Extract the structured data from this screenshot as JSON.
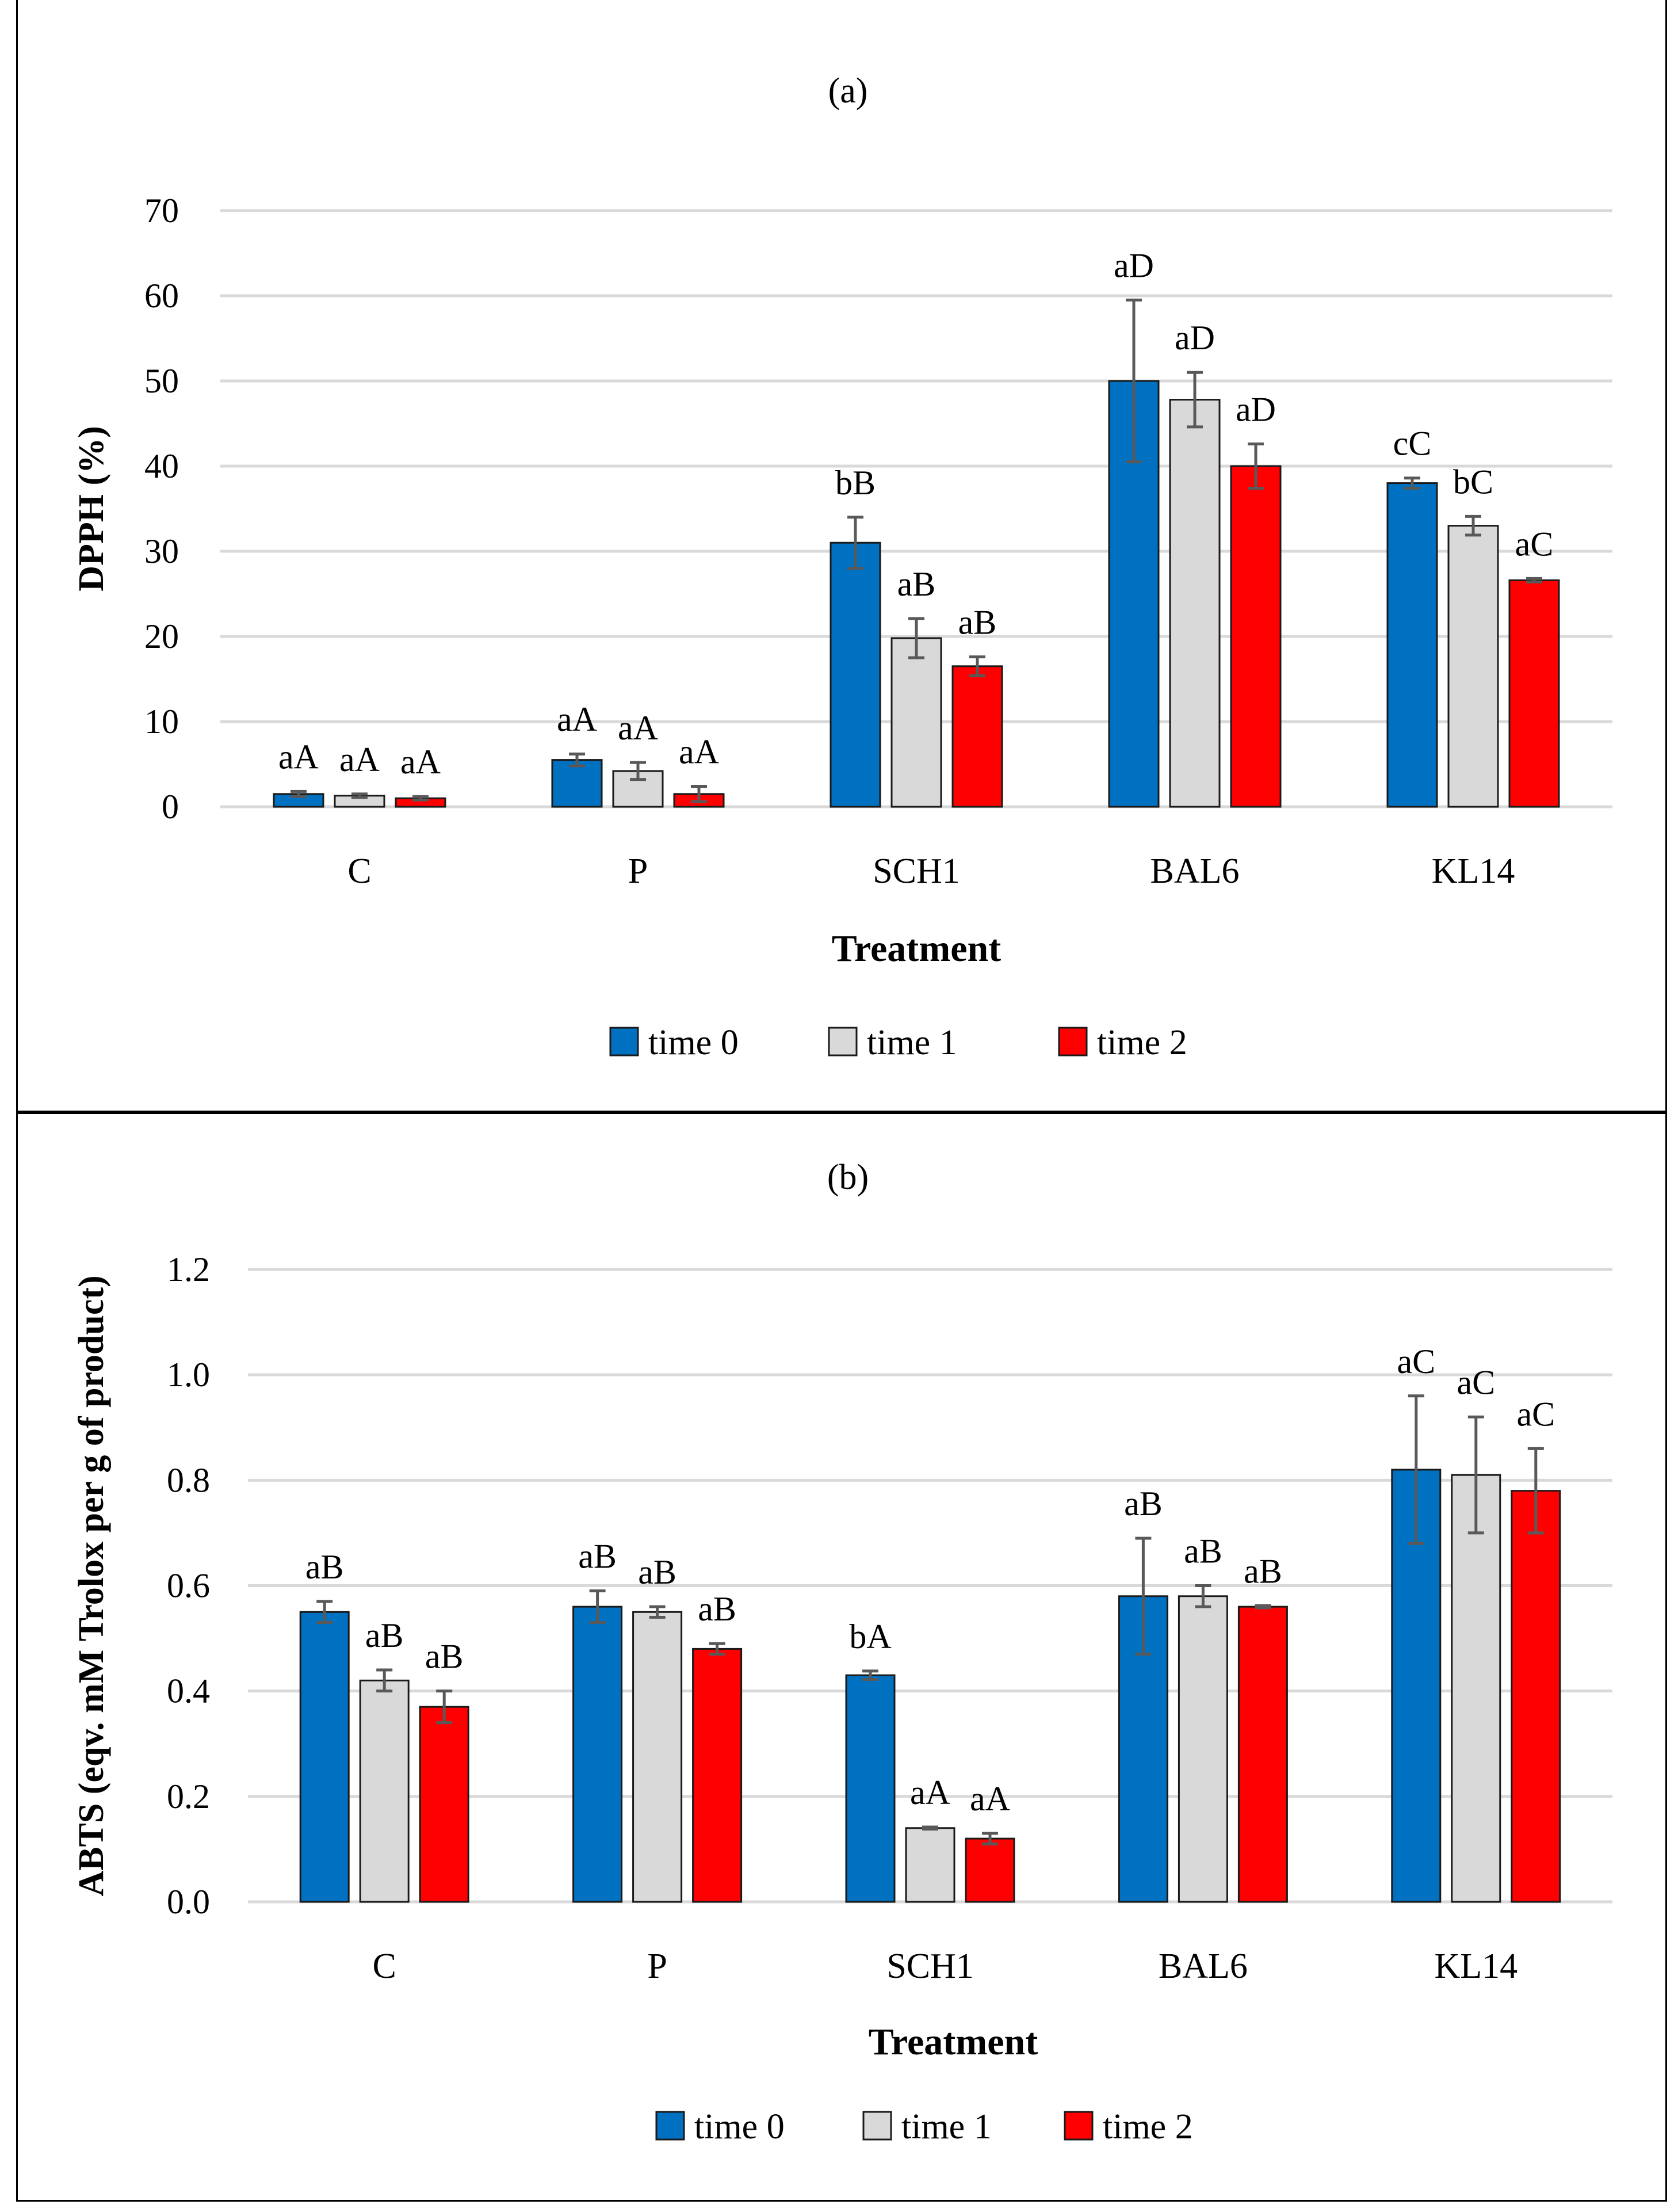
{
  "chart_data": [
    {
      "type": "bar",
      "panel_label": "a",
      "title": "(a)",
      "xlabel": "Treatment",
      "ylabel": "DPPH (%)",
      "ylim": [
        0,
        70
      ],
      "yticks": [
        "0",
        "10",
        "20",
        "30",
        "40",
        "50",
        "60",
        "70"
      ],
      "ytick_values": [
        0,
        10,
        20,
        30,
        40,
        50,
        60,
        70
      ],
      "grid": true,
      "legend": "bottom",
      "categories": [
        "C",
        "P",
        "SCH1",
        "BAL6",
        "KL14"
      ],
      "series": [
        {
          "name": "time 0",
          "color": "#0070C0",
          "values": [
            1.5,
            5.5,
            31,
            50,
            38
          ],
          "errors": [
            0.3,
            0.7,
            3,
            9.5,
            0.6
          ],
          "labels": [
            "aA",
            "aA",
            "bB",
            "aD",
            "cC"
          ]
        },
        {
          "name": "time 1",
          "color": "#D9D9D9",
          "values": [
            1.3,
            4.2,
            19.8,
            47.8,
            33
          ],
          "errors": [
            0.2,
            1.0,
            2.3,
            3.2,
            1.1
          ],
          "labels": [
            "aA",
            "aA",
            "aB",
            "aD",
            "bC"
          ]
        },
        {
          "name": "time 2",
          "color": "#FF0000",
          "values": [
            1.0,
            1.5,
            16.5,
            40,
            26.6
          ],
          "errors": [
            0.2,
            0.9,
            1.1,
            2.6,
            0.2
          ],
          "labels": [
            "aA",
            "aA",
            "aB",
            "aD",
            "aC"
          ]
        }
      ]
    },
    {
      "type": "bar",
      "panel_label": "b",
      "title": "(b)",
      "xlabel": "Treatment",
      "ylabel": "ABTS (eqv. mM Trolox per g of product)",
      "ylim": [
        0,
        1.2
      ],
      "yticks": [
        "0.0",
        "0.2",
        "0.4",
        "0.6",
        "0.8",
        "1.0",
        "1.2"
      ],
      "ytick_values": [
        0,
        0.2,
        0.4,
        0.6,
        0.8,
        1.0,
        1.2
      ],
      "grid": true,
      "legend": "bottom",
      "categories": [
        "C",
        "P",
        "SCH1",
        "BAL6",
        "KL14"
      ],
      "series": [
        {
          "name": "time 0",
          "color": "#0070C0",
          "values": [
            0.55,
            0.56,
            0.43,
            0.58,
            0.82
          ],
          "errors": [
            0.02,
            0.03,
            0.008,
            0.11,
            0.14
          ],
          "labels": [
            "aB",
            "aB",
            "bA",
            "aB",
            "aC"
          ]
        },
        {
          "name": "time 1",
          "color": "#D9D9D9",
          "values": [
            0.42,
            0.55,
            0.14,
            0.58,
            0.81
          ],
          "errors": [
            0.02,
            0.01,
            0.002,
            0.02,
            0.11
          ],
          "labels": [
            "aB",
            "aB",
            "aA",
            "aB",
            "aC"
          ]
        },
        {
          "name": "time 2",
          "color": "#FF0000",
          "values": [
            0.37,
            0.48,
            0.12,
            0.56,
            0.78
          ],
          "errors": [
            0.03,
            0.01,
            0.01,
            0.002,
            0.08
          ],
          "labels": [
            "aB",
            "aB",
            "aA",
            "aB",
            "aC"
          ]
        }
      ]
    }
  ]
}
